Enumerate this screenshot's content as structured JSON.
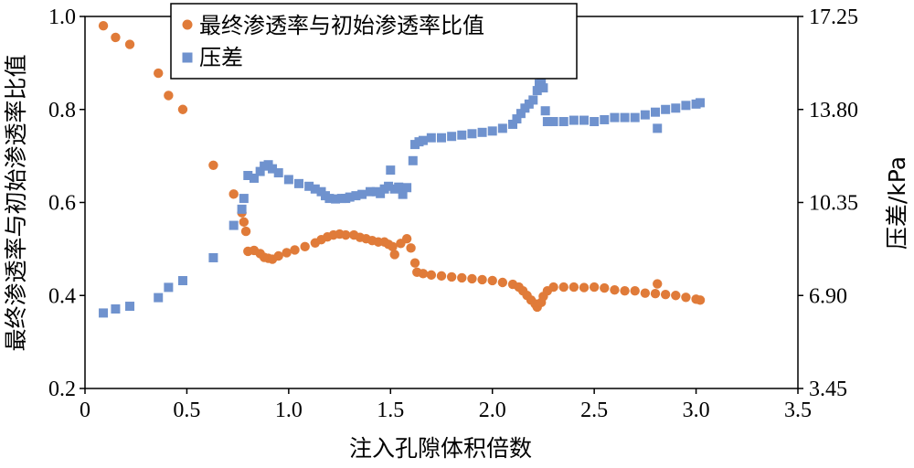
{
  "chart_data": {
    "type": "scatter",
    "xlabel": "注入孔隙体积倍数",
    "ylabel_left": "最终渗透率与初始渗透率比值",
    "ylabel_right": "压差/kPa",
    "xlim": [
      0,
      3.5
    ],
    "ylim_left": [
      0.2,
      1.0
    ],
    "ylim_right": [
      3.45,
      17.25
    ],
    "x_ticks": [
      "0",
      "0.5",
      "1.0",
      "1.5",
      "2.0",
      "2.5",
      "3.0",
      "3.5"
    ],
    "y_left_ticks": [
      "0.2",
      "0.4",
      "0.6",
      "0.8",
      "1.0"
    ],
    "y_right_ticks": [
      "3.45",
      "6.90",
      "10.35",
      "13.80",
      "17.25"
    ],
    "grid": false,
    "legend_position": "top-center",
    "series": [
      {
        "name": "最终渗透率与初始渗透率比值",
        "axis": "left",
        "marker": "circle",
        "color": "#E07B39",
        "points": [
          [
            0.09,
            0.98
          ],
          [
            0.15,
            0.955
          ],
          [
            0.22,
            0.94
          ],
          [
            0.36,
            0.878
          ],
          [
            0.41,
            0.83
          ],
          [
            0.48,
            0.8
          ],
          [
            0.63,
            0.68
          ],
          [
            0.73,
            0.618
          ],
          [
            0.77,
            0.578
          ],
          [
            0.78,
            0.558
          ],
          [
            0.79,
            0.538
          ],
          [
            0.8,
            0.495
          ],
          [
            0.83,
            0.497
          ],
          [
            0.86,
            0.49
          ],
          [
            0.88,
            0.482
          ],
          [
            0.9,
            0.48
          ],
          [
            0.92,
            0.478
          ],
          [
            0.95,
            0.485
          ],
          [
            0.99,
            0.492
          ],
          [
            1.03,
            0.498
          ],
          [
            1.08,
            0.505
          ],
          [
            1.13,
            0.513
          ],
          [
            1.16,
            0.52
          ],
          [
            1.19,
            0.526
          ],
          [
            1.22,
            0.53
          ],
          [
            1.25,
            0.532
          ],
          [
            1.28,
            0.53
          ],
          [
            1.32,
            0.53
          ],
          [
            1.35,
            0.525
          ],
          [
            1.38,
            0.522
          ],
          [
            1.41,
            0.518
          ],
          [
            1.44,
            0.515
          ],
          [
            1.47,
            0.515
          ],
          [
            1.49,
            0.51
          ],
          [
            1.51,
            0.505
          ],
          [
            1.52,
            0.488
          ],
          [
            1.55,
            0.512
          ],
          [
            1.58,
            0.522
          ],
          [
            1.6,
            0.502
          ],
          [
            1.62,
            0.47
          ],
          [
            1.63,
            0.45
          ],
          [
            1.66,
            0.447
          ],
          [
            1.7,
            0.444
          ],
          [
            1.75,
            0.442
          ],
          [
            1.8,
            0.44
          ],
          [
            1.85,
            0.438
          ],
          [
            1.9,
            0.436
          ],
          [
            1.95,
            0.434
          ],
          [
            2.0,
            0.432
          ],
          [
            2.05,
            0.428
          ],
          [
            2.1,
            0.424
          ],
          [
            2.13,
            0.418
          ],
          [
            2.15,
            0.41
          ],
          [
            2.17,
            0.4
          ],
          [
            2.19,
            0.39
          ],
          [
            2.21,
            0.382
          ],
          [
            2.22,
            0.375
          ],
          [
            2.24,
            0.385
          ],
          [
            2.25,
            0.398
          ],
          [
            2.27,
            0.41
          ],
          [
            2.3,
            0.418
          ],
          [
            2.35,
            0.418
          ],
          [
            2.4,
            0.418
          ],
          [
            2.45,
            0.417
          ],
          [
            2.5,
            0.418
          ],
          [
            2.55,
            0.416
          ],
          [
            2.6,
            0.412
          ],
          [
            2.65,
            0.41
          ],
          [
            2.7,
            0.41
          ],
          [
            2.75,
            0.405
          ],
          [
            2.8,
            0.404
          ],
          [
            2.81,
            0.425
          ],
          [
            2.85,
            0.402
          ],
          [
            2.9,
            0.4
          ],
          [
            2.95,
            0.396
          ],
          [
            3.0,
            0.392
          ],
          [
            3.02,
            0.39
          ]
        ]
      },
      {
        "name": "压差",
        "axis": "right",
        "marker": "square",
        "color": "#6F92CE",
        "points": [
          [
            0.09,
            6.25
          ],
          [
            0.15,
            6.4
          ],
          [
            0.22,
            6.5
          ],
          [
            0.36,
            6.82
          ],
          [
            0.41,
            7.2
          ],
          [
            0.48,
            7.45
          ],
          [
            0.63,
            8.3
          ],
          [
            0.73,
            9.5
          ],
          [
            0.77,
            10.1
          ],
          [
            0.78,
            10.5
          ],
          [
            0.8,
            11.35
          ],
          [
            0.83,
            11.25
          ],
          [
            0.86,
            11.5
          ],
          [
            0.88,
            11.7
          ],
          [
            0.9,
            11.75
          ],
          [
            0.92,
            11.6
          ],
          [
            0.95,
            11.45
          ],
          [
            1.0,
            11.2
          ],
          [
            1.05,
            11.05
          ],
          [
            1.1,
            10.95
          ],
          [
            1.13,
            10.85
          ],
          [
            1.16,
            10.75
          ],
          [
            1.18,
            10.6
          ],
          [
            1.2,
            10.5
          ],
          [
            1.23,
            10.48
          ],
          [
            1.26,
            10.5
          ],
          [
            1.28,
            10.5
          ],
          [
            1.3,
            10.55
          ],
          [
            1.33,
            10.6
          ],
          [
            1.36,
            10.65
          ],
          [
            1.4,
            10.75
          ],
          [
            1.43,
            10.75
          ],
          [
            1.45,
            10.68
          ],
          [
            1.47,
            10.85
          ],
          [
            1.49,
            10.95
          ],
          [
            1.5,
            11.55
          ],
          [
            1.52,
            10.85
          ],
          [
            1.54,
            10.92
          ],
          [
            1.56,
            10.65
          ],
          [
            1.58,
            10.9
          ],
          [
            1.61,
            11.9
          ],
          [
            1.62,
            12.5
          ],
          [
            1.64,
            12.6
          ],
          [
            1.66,
            12.65
          ],
          [
            1.7,
            12.75
          ],
          [
            1.75,
            12.75
          ],
          [
            1.8,
            12.8
          ],
          [
            1.85,
            12.85
          ],
          [
            1.9,
            12.9
          ],
          [
            1.95,
            12.95
          ],
          [
            2.0,
            13.0
          ],
          [
            2.05,
            13.1
          ],
          [
            2.1,
            13.25
          ],
          [
            2.12,
            13.45
          ],
          [
            2.14,
            13.65
          ],
          [
            2.16,
            13.85
          ],
          [
            2.18,
            14.0
          ],
          [
            2.2,
            14.15
          ],
          [
            2.22,
            14.5
          ],
          [
            2.23,
            14.75
          ],
          [
            2.24,
            14.9
          ],
          [
            2.25,
            14.6
          ],
          [
            2.26,
            13.75
          ],
          [
            2.27,
            13.35
          ],
          [
            2.3,
            13.35
          ],
          [
            2.35,
            13.35
          ],
          [
            2.4,
            13.4
          ],
          [
            2.45,
            13.4
          ],
          [
            2.5,
            13.35
          ],
          [
            2.55,
            13.42
          ],
          [
            2.6,
            13.5
          ],
          [
            2.65,
            13.5
          ],
          [
            2.7,
            13.5
          ],
          [
            2.75,
            13.6
          ],
          [
            2.8,
            13.7
          ],
          [
            2.81,
            13.1
          ],
          [
            2.85,
            13.8
          ],
          [
            2.9,
            13.85
          ],
          [
            2.95,
            13.95
          ],
          [
            3.0,
            14.0
          ],
          [
            3.02,
            14.05
          ]
        ]
      }
    ]
  }
}
